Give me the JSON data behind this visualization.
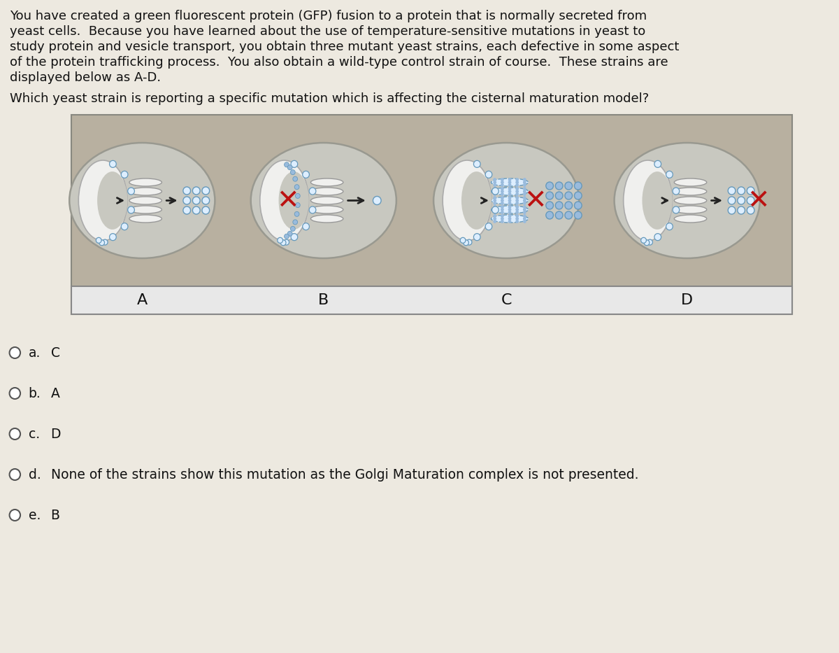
{
  "bg_color": "#ede9e0",
  "para_text_lines": [
    "You have created a green fluorescent protein (GFP) fusion to a protein that is normally secreted from",
    "yeast cells.  Because you have learned about the use of temperature-sensitive mutations in yeast to",
    "study protein and vesicle transport, you obtain three mutant yeast strains, each defective in some aspect",
    "of the protein trafficking process.  You also obtain a wild-type control strain of course.  These strains are",
    "displayed below as A-D."
  ],
  "question_text": "Which yeast strain is reporting a specific mutation which is affecting the cisternal maturation model?",
  "options": [
    {
      "label": "a.",
      "text": "C"
    },
    {
      "label": "b.",
      "text": "A"
    },
    {
      "label": "c.",
      "text": "D"
    },
    {
      "label": "d.",
      "text": "None of the strains show this mutation as the Golgi Maturation complex is not presented."
    },
    {
      "label": "e.",
      "text": "B"
    }
  ],
  "strain_labels": [
    "A",
    "B",
    "C",
    "D"
  ],
  "cell_bg": "#c8c8c0",
  "cell_border": "#999990",
  "er_fill_white": "#f0f0ee",
  "er_border": "#aaaaaa",
  "golgi_fill": "#f0f0ee",
  "golgi_border": "#999999",
  "vesicle_fill": "#ddeeff",
  "vesicle_border": "#6699bb",
  "blue_dot_fill": "#99bbdd",
  "blue_dot_border": "#5588bb",
  "arrow_color": "#222222",
  "x_color": "#bb1111",
  "label_bar_bg": "#e8e8e8",
  "label_bar_border": "#888888",
  "text_color": "#111111",
  "font_size_para": 13.0,
  "font_size_q": 13.0,
  "font_size_opt": 13.5,
  "font_size_label": 16
}
